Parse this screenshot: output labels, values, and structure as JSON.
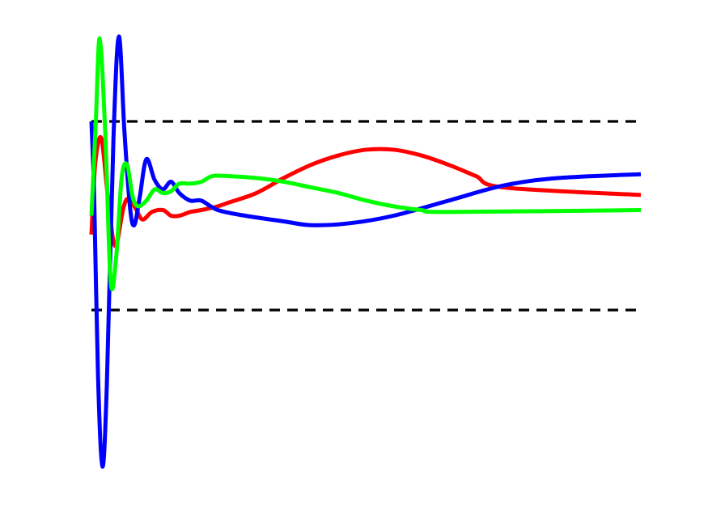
{
  "chart_data": {
    "type": "line",
    "title": "",
    "xlabel": "",
    "ylabel": "",
    "xlim": [
      0,
      1
    ],
    "ylim": [
      -1.39,
      1.0
    ],
    "grid": false,
    "axes_visible": false,
    "reference_lines": [
      {
        "y": 0.5,
        "style": "dashed",
        "color": "#000000"
      },
      {
        "y": -0.5,
        "style": "dashed",
        "color": "#000000"
      }
    ],
    "series": [
      {
        "color": "#ff0000",
        "points": [
          [
            0.0,
            -0.1
          ],
          [
            0.007,
            0.28
          ],
          [
            0.018,
            0.41
          ],
          [
            0.03,
            0.1
          ],
          [
            0.043,
            -0.16
          ],
          [
            0.058,
            0.04
          ],
          [
            0.067,
            0.09
          ],
          [
            0.08,
            0.04
          ],
          [
            0.093,
            -0.02
          ],
          [
            0.11,
            0.02
          ],
          [
            0.13,
            0.03
          ],
          [
            0.145,
            0.0
          ],
          [
            0.16,
            0.0
          ],
          [
            0.18,
            0.02
          ],
          [
            0.2,
            0.03
          ],
          [
            0.23,
            0.05
          ],
          [
            0.25,
            0.07
          ],
          [
            0.3,
            0.12
          ],
          [
            0.35,
            0.2
          ],
          [
            0.4,
            0.27
          ],
          [
            0.45,
            0.32
          ],
          [
            0.5,
            0.35
          ],
          [
            0.55,
            0.35
          ],
          [
            0.6,
            0.32
          ],
          [
            0.65,
            0.27
          ],
          [
            0.7,
            0.21
          ],
          [
            0.75,
            0.15
          ],
          [
            1.0,
            0.11
          ]
        ]
      },
      {
        "color": "#0000ff",
        "points": [
          [
            0.0,
            0.5
          ],
          [
            0.005,
            0.1
          ],
          [
            0.012,
            -0.85
          ],
          [
            0.02,
            -1.33
          ],
          [
            0.028,
            -0.9
          ],
          [
            0.04,
            0.4
          ],
          [
            0.05,
            0.95
          ],
          [
            0.06,
            0.45
          ],
          [
            0.07,
            0.05
          ],
          [
            0.078,
            -0.05
          ],
          [
            0.088,
            0.1
          ],
          [
            0.1,
            0.3
          ],
          [
            0.115,
            0.19
          ],
          [
            0.13,
            0.14
          ],
          [
            0.145,
            0.18
          ],
          [
            0.16,
            0.12
          ],
          [
            0.18,
            0.08
          ],
          [
            0.2,
            0.08
          ],
          [
            0.23,
            0.03
          ],
          [
            0.28,
            0.0
          ],
          [
            0.35,
            -0.03
          ],
          [
            0.4,
            -0.05
          ],
          [
            0.47,
            -0.04
          ],
          [
            0.55,
            0.0
          ],
          [
            0.65,
            0.08
          ],
          [
            0.75,
            0.16
          ],
          [
            0.85,
            0.2
          ],
          [
            1.0,
            0.22
          ]
        ]
      },
      {
        "color": "#00ff00",
        "points": [
          [
            0.0,
            0.0
          ],
          [
            0.008,
            0.5
          ],
          [
            0.015,
            0.94
          ],
          [
            0.025,
            0.45
          ],
          [
            0.035,
            -0.35
          ],
          [
            0.045,
            -0.22
          ],
          [
            0.055,
            0.2
          ],
          [
            0.065,
            0.27
          ],
          [
            0.075,
            0.1
          ],
          [
            0.085,
            0.05
          ],
          [
            0.1,
            0.08
          ],
          [
            0.115,
            0.14
          ],
          [
            0.13,
            0.12
          ],
          [
            0.145,
            0.13
          ],
          [
            0.16,
            0.17
          ],
          [
            0.18,
            0.17
          ],
          [
            0.2,
            0.18
          ],
          [
            0.22,
            0.21
          ],
          [
            0.25,
            0.21
          ],
          [
            0.3,
            0.2
          ],
          [
            0.35,
            0.18
          ],
          [
            0.4,
            0.15
          ],
          [
            0.45,
            0.12
          ],
          [
            0.5,
            0.08
          ],
          [
            0.55,
            0.05
          ],
          [
            0.6,
            0.03
          ],
          [
            0.65,
            0.02
          ],
          [
            1.0,
            0.03
          ]
        ]
      }
    ]
  }
}
